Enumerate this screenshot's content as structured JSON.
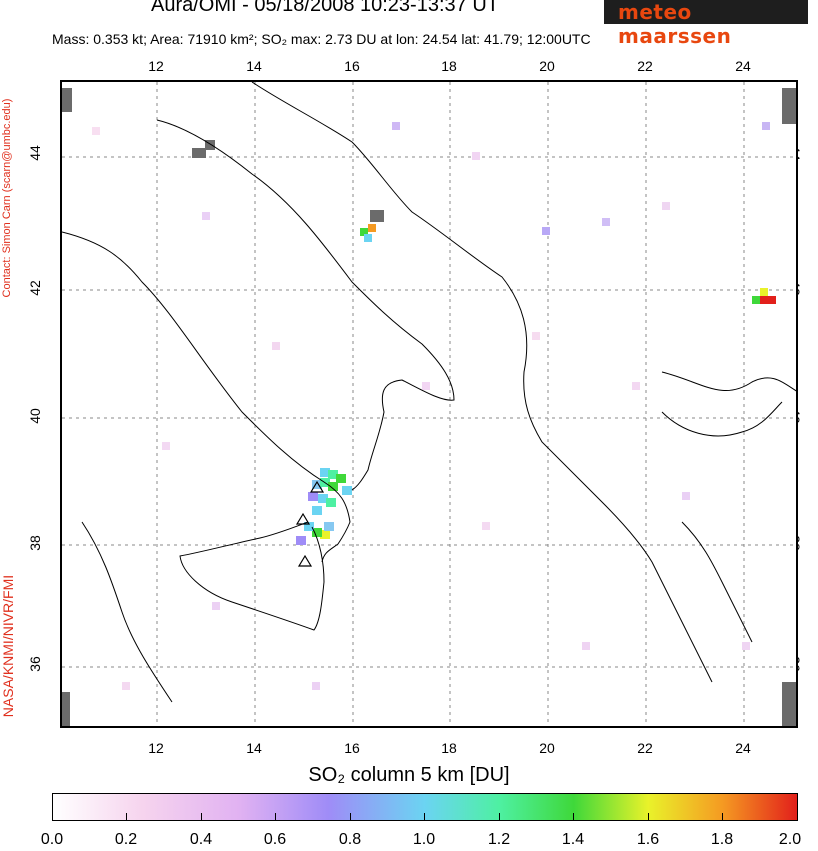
{
  "header": {
    "title": "Aura/OMI - 05/18/2008 10:23-13:37 UT",
    "mass_label": "Mass:",
    "mass_value": "0.353 kt",
    "area_label": "Area:",
    "area_value": "71910 km²",
    "so2_label": "SO₂ max:",
    "so2_value": "2.73 DU",
    "at_lon_label": "at lon:",
    "lon_value": "24.54",
    "lat_label": "lat:",
    "lat_value": "41.79",
    "time_value": "12:00UTC"
  },
  "logo": {
    "text": "meteo maarssen",
    "color": "#e8470f"
  },
  "side": {
    "contact": "Contact: Simon Carn (scarn@umbc.edu)",
    "credit": "NASA/KNMI/NIVR/FMI"
  },
  "map": {
    "lon_range": [
      10,
      25
    ],
    "lat_range": [
      35,
      45
    ],
    "lon_ticks": [
      "12",
      "14",
      "16",
      "18",
      "20",
      "22",
      "24"
    ],
    "lat_ticks": [
      "36",
      "38",
      "40",
      "42",
      "44"
    ],
    "volcano_icon": "triangle-volcano-icon"
  },
  "colorbar": {
    "title": "SO₂ column 5 km [DU]",
    "labels": [
      "0.0",
      "0.2",
      "0.4",
      "0.6",
      "0.8",
      "1.0",
      "1.2",
      "1.4",
      "1.6",
      "1.8",
      "2.0"
    ],
    "colors": [
      "#ffffff",
      "#f6d4ee",
      "#e1b2f2",
      "#9f8cf7",
      "#6bd4f2",
      "#4ef0a2",
      "#3fd83a",
      "#e9f22a",
      "#f59a22",
      "#e2201b"
    ]
  }
}
